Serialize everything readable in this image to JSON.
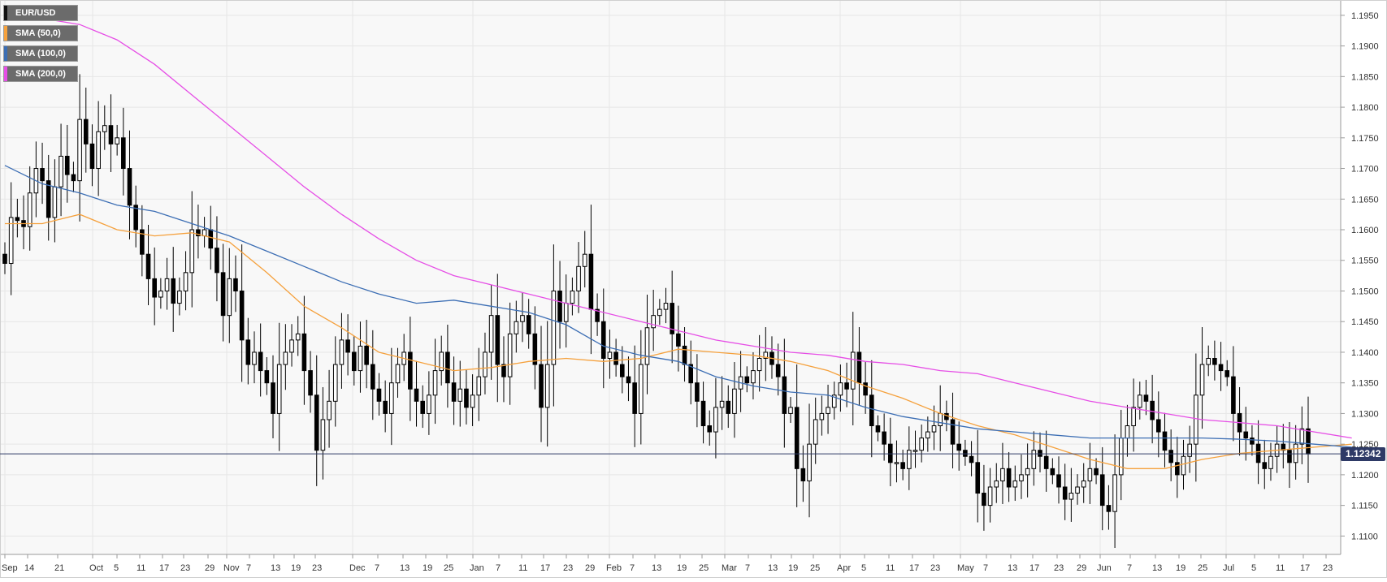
{
  "colors": {
    "plot_bg": "#f8f8f8",
    "grid": "#e6e6e6",
    "axis": "#9a9a9a",
    "candle": "#000000",
    "sma50": "#f5a13d",
    "sma100": "#3c6eb4",
    "sma200": "#e64ee6",
    "last_price_line": "#2e3a66"
  },
  "last_price_label": "1.12342",
  "legend": [
    {
      "label": "EUR/USD",
      "color": "#111111"
    },
    {
      "label": "SMA (50,0)",
      "color": "#f5a13d"
    },
    {
      "label": "SMA (100,0)",
      "color": "#3c6eb4"
    },
    {
      "label": "SMA (200,0)",
      "color": "#e64ee6"
    }
  ],
  "chart_data": {
    "type": "candlestick",
    "instrument": "EUR/USD",
    "ylim": [
      1.107,
      1.1975
    ],
    "y_ticks": [
      "1.1100",
      "1.1150",
      "1.1200",
      "1.1250",
      "1.1300",
      "1.1350",
      "1.1400",
      "1.1450",
      "1.1500",
      "1.1550",
      "1.1600",
      "1.1650",
      "1.1700",
      "1.1750",
      "1.1800",
      "1.1850",
      "1.1900",
      "1.1950"
    ],
    "x_ticks": [
      "Sep",
      "14",
      "21",
      "Oct",
      "5",
      "11",
      "17",
      "23",
      "29",
      "Nov",
      "7",
      "13",
      "19",
      "23",
      "Dec",
      "7",
      "13",
      "19",
      "25",
      "Jan",
      "7",
      "11",
      "17",
      "23",
      "29",
      "Feb",
      "7",
      "13",
      "19",
      "25",
      "Mar",
      "7",
      "13",
      "19",
      "25",
      "Apr",
      "5",
      "11",
      "17",
      "23",
      "May",
      "7",
      "13",
      "17",
      "23",
      "29",
      "Jun",
      "7",
      "13",
      "19",
      "25",
      "Jul",
      "5",
      "11",
      "17",
      "23"
    ],
    "grid": true,
    "last_price": 1.12342,
    "closes": [
      1.1545,
      1.162,
      1.1615,
      1.1605,
      1.166,
      1.17,
      1.168,
      1.162,
      1.167,
      1.172,
      1.169,
      1.168,
      1.178,
      1.174,
      1.17,
      1.176,
      1.177,
      1.174,
      1.175,
      1.17,
      1.164,
      1.16,
      1.156,
      1.152,
      1.149,
      1.15,
      1.152,
      1.148,
      1.15,
      1.153,
      1.16,
      1.159,
      1.16,
      1.157,
      1.153,
      1.146,
      1.152,
      1.15,
      1.142,
      1.138,
      1.14,
      1.137,
      1.135,
      1.13,
      1.138,
      1.14,
      1.142,
      1.143,
      1.137,
      1.133,
      1.124,
      1.129,
      1.132,
      1.138,
      1.142,
      1.14,
      1.137,
      1.141,
      1.138,
      1.134,
      1.132,
      1.13,
      1.135,
      1.138,
      1.14,
      1.134,
      1.132,
      1.13,
      1.133,
      1.137,
      1.14,
      1.135,
      1.132,
      1.134,
      1.131,
      1.133,
      1.136,
      1.14,
      1.146,
      1.138,
      1.136,
      1.143,
      1.145,
      1.146,
      1.143,
      1.138,
      1.131,
      1.138,
      1.15,
      1.145,
      1.148,
      1.15,
      1.154,
      1.156,
      1.147,
      1.145,
      1.139,
      1.14,
      1.138,
      1.136,
      1.135,
      1.13,
      1.138,
      1.144,
      1.146,
      1.147,
      1.148,
      1.143,
      1.141,
      1.138,
      1.135,
      1.132,
      1.128,
      1.127,
      1.131,
      1.132,
      1.13,
      1.134,
      1.136,
      1.135,
      1.137,
      1.139,
      1.14,
      1.138,
      1.136,
      1.13,
      1.131,
      1.121,
      1.119,
      1.125,
      1.129,
      1.13,
      1.131,
      1.133,
      1.135,
      1.134,
      1.14,
      1.135,
      1.133,
      1.128,
      1.127,
      1.125,
      1.122,
      1.122,
      1.121,
      1.124,
      1.124,
      1.126,
      1.127,
      1.128,
      1.13,
      1.129,
      1.125,
      1.124,
      1.123,
      1.122,
      1.117,
      1.115,
      1.118,
      1.119,
      1.121,
      1.118,
      1.119,
      1.12,
      1.121,
      1.124,
      1.123,
      1.121,
      1.12,
      1.118,
      1.116,
      1.117,
      1.118,
      1.119,
      1.121,
      1.12,
      1.115,
      1.114,
      1.12,
      1.126,
      1.128,
      1.131,
      1.133,
      1.132,
      1.129,
      1.127,
      1.124,
      1.122,
      1.12,
      1.123,
      1.125,
      1.133,
      1.138,
      1.139,
      1.138,
      1.137,
      1.136,
      1.13,
      1.127,
      1.126,
      1.125,
      1.122,
      1.121,
      1.123,
      1.125,
      1.124,
      1.122,
      1.125,
      1.1275,
      1.1234
    ],
    "series": [
      {
        "name": "SMA (50,0)",
        "x": [
          0,
          6,
          12,
          18,
          24,
          30,
          36,
          42,
          48,
          54,
          60,
          66,
          72,
          78,
          84,
          90,
          96,
          102,
          108,
          114,
          120,
          126,
          132,
          138,
          144,
          150,
          156,
          162,
          168,
          174,
          180,
          186,
          192,
          198,
          204,
          210,
          216
        ],
        "values": [
          1.161,
          1.161,
          1.1625,
          1.16,
          1.159,
          1.1595,
          1.158,
          1.153,
          1.1475,
          1.144,
          1.14,
          1.1385,
          1.137,
          1.1375,
          1.1385,
          1.139,
          1.1385,
          1.139,
          1.1405,
          1.14,
          1.1395,
          1.1385,
          1.137,
          1.1345,
          1.1325,
          1.13,
          1.128,
          1.1265,
          1.1245,
          1.1225,
          1.121,
          1.121,
          1.1225,
          1.1235,
          1.124,
          1.1245,
          1.125
        ]
      },
      {
        "name": "SMA (100,0)",
        "x": [
          0,
          6,
          12,
          18,
          24,
          30,
          36,
          42,
          48,
          54,
          60,
          66,
          72,
          78,
          84,
          90,
          96,
          102,
          108,
          114,
          120,
          126,
          132,
          138,
          144,
          150,
          156,
          162,
          168,
          174,
          180,
          186,
          192,
          198,
          204,
          210,
          216
        ],
        "values": [
          1.1705,
          1.1675,
          1.166,
          1.164,
          1.163,
          1.161,
          1.159,
          1.1565,
          1.154,
          1.1515,
          1.1495,
          1.148,
          1.1485,
          1.1475,
          1.1465,
          1.1445,
          1.141,
          1.1395,
          1.1385,
          1.136,
          1.1345,
          1.1335,
          1.133,
          1.131,
          1.1295,
          1.1285,
          1.1275,
          1.127,
          1.1265,
          1.126,
          1.126,
          1.126,
          1.126,
          1.1258,
          1.1255,
          1.125,
          1.1245
        ]
      },
      {
        "name": "SMA (200,0)",
        "x": [
          0,
          6,
          12,
          18,
          24,
          30,
          36,
          42,
          48,
          54,
          60,
          66,
          72,
          78,
          84,
          90,
          96,
          102,
          108,
          114,
          120,
          126,
          132,
          138,
          144,
          150,
          156,
          162,
          168,
          174,
          180,
          186,
          192,
          198,
          204,
          210,
          216
        ],
        "values": [
          1.196,
          1.1945,
          1.1935,
          1.191,
          1.187,
          1.182,
          1.177,
          1.172,
          1.167,
          1.1625,
          1.1585,
          1.155,
          1.1525,
          1.151,
          1.1495,
          1.148,
          1.1465,
          1.145,
          1.1435,
          1.142,
          1.141,
          1.14,
          1.1395,
          1.1385,
          1.138,
          1.137,
          1.1365,
          1.135,
          1.1335,
          1.132,
          1.131,
          1.13,
          1.129,
          1.1285,
          1.128,
          1.127,
          1.126
        ]
      }
    ]
  }
}
